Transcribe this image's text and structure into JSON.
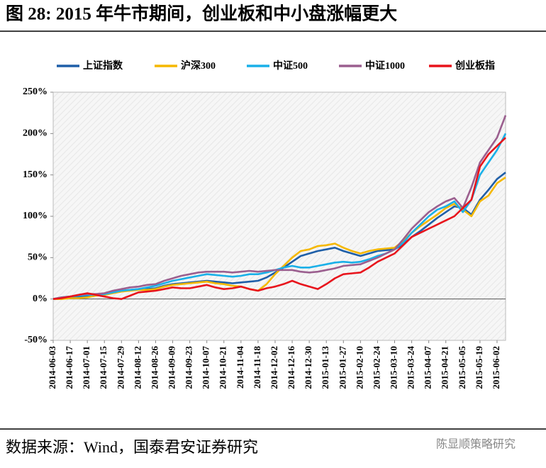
{
  "chart_data": {
    "type": "line",
    "title": "图 28: 2015 年牛市期间，创业板和中小盘涨幅更大",
    "source": "数据来源：Wind，国泰君安证券研究",
    "watermark": "陈显顺策略研究",
    "categories": [
      "2014-06-03",
      null,
      "2014-06-17",
      null,
      "2014-07-01",
      null,
      "2014-07-15",
      null,
      "2014-07-29",
      null,
      "2014-08-12",
      null,
      "2014-08-26",
      null,
      "2014-09-09",
      null,
      "2014-09-23",
      null,
      "2014-10-07",
      null,
      "2014-10-21",
      null,
      "2014-11-04",
      null,
      "2014-11-18",
      null,
      "2014-12-02",
      null,
      "2014-12-16",
      null,
      "2014-12-30",
      null,
      "2015-01-13",
      null,
      "2015-01-27",
      null,
      "2015-02-10",
      null,
      "2015-02-24",
      null,
      "2015-03-10",
      null,
      "2015-03-24",
      null,
      "2015-04-07",
      null,
      "2015-04-21",
      null,
      "2015-05-05",
      null,
      "2015-05-19",
      null,
      "2015-06-02",
      null
    ],
    "series": [
      {
        "name": "上证指数",
        "color": "#1f5fa8",
        "values": [
          0,
          1,
          2,
          3,
          4,
          5,
          6,
          8,
          10,
          11,
          12,
          12,
          13,
          16,
          18,
          19,
          20,
          21,
          22,
          21,
          20,
          19,
          20,
          21,
          22,
          26,
          32,
          38,
          45,
          52,
          55,
          58,
          60,
          62,
          58,
          55,
          52,
          55,
          58,
          59,
          60,
          66,
          75,
          82,
          90,
          98,
          105,
          112,
          110,
          102,
          120,
          132,
          145,
          153
        ]
      },
      {
        "name": "沪深300",
        "color": "#f5b800",
        "values": [
          0,
          0,
          1,
          1,
          2,
          4,
          5,
          7,
          9,
          10,
          11,
          11,
          12,
          15,
          17,
          18,
          19,
          20,
          21,
          19,
          18,
          16,
          15,
          12,
          10,
          18,
          30,
          40,
          50,
          58,
          60,
          64,
          65,
          67,
          62,
          58,
          55,
          58,
          60,
          61,
          62,
          70,
          80,
          88,
          95,
          102,
          110,
          115,
          108,
          100,
          118,
          125,
          140,
          147
        ]
      },
      {
        "name": "中证500",
        "color": "#1ab0e8",
        "values": [
          0,
          2,
          3,
          4,
          5,
          5,
          6,
          8,
          10,
          11,
          12,
          14,
          16,
          19,
          22,
          24,
          26,
          28,
          30,
          29,
          28,
          27,
          28,
          30,
          30,
          32,
          35,
          38,
          40,
          38,
          38,
          40,
          42,
          44,
          45,
          44,
          45,
          48,
          52,
          55,
          60,
          68,
          80,
          90,
          100,
          108,
          112,
          118,
          105,
          120,
          150,
          165,
          180,
          200
        ]
      },
      {
        "name": "中证1000",
        "color": "#9b5f8f",
        "values": [
          0,
          2,
          3,
          5,
          6,
          6,
          7,
          10,
          12,
          14,
          15,
          17,
          18,
          22,
          25,
          28,
          30,
          32,
          33,
          33,
          33,
          32,
          33,
          34,
          33,
          34,
          35,
          35,
          35,
          33,
          32,
          33,
          35,
          37,
          40,
          41,
          42,
          46,
          50,
          55,
          60,
          72,
          85,
          95,
          105,
          112,
          118,
          122,
          110,
          135,
          165,
          180,
          195,
          222
        ]
      },
      {
        "name": "创业板指",
        "color": "#e8141c",
        "values": [
          0,
          1,
          3,
          5,
          7,
          5,
          3,
          1,
          0,
          4,
          8,
          9,
          10,
          12,
          14,
          13,
          13,
          15,
          17,
          14,
          12,
          13,
          15,
          12,
          10,
          13,
          15,
          18,
          22,
          18,
          15,
          12,
          18,
          25,
          30,
          31,
          32,
          38,
          45,
          50,
          55,
          65,
          75,
          80,
          85,
          90,
          95,
          100,
          110,
          120,
          160,
          175,
          185,
          195
        ]
      }
    ],
    "ylim": [
      -50,
      250
    ],
    "yticks": [
      {
        "value": -50,
        "label": "-50%"
      },
      {
        "value": 0,
        "label": "0%"
      },
      {
        "value": 50,
        "label": "50%"
      },
      {
        "value": 100,
        "label": "100%"
      },
      {
        "value": 150,
        "label": "150%"
      },
      {
        "value": 200,
        "label": "200%"
      },
      {
        "value": 250,
        "label": "250%"
      }
    ],
    "grid": false,
    "legend": "top"
  }
}
